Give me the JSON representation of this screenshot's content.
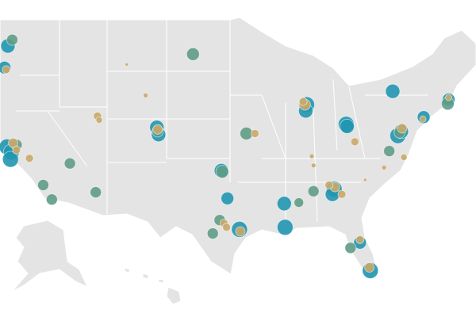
{
  "map": {
    "markers": [
      {
        "color": "#2196b0",
        "points": [
          [
            -122.3,
            47.6,
            9
          ],
          [
            -122.7,
            45.5,
            8
          ],
          [
            -122.4,
            37.8,
            10
          ],
          [
            -121.9,
            37.3,
            10
          ],
          [
            -122.0,
            36.6,
            10
          ],
          [
            -105.0,
            39.7,
            9
          ],
          [
            -104.8,
            39.0,
            9
          ],
          [
            -97.5,
            35.5,
            9
          ],
          [
            -96.8,
            32.8,
            8
          ],
          [
            -95.4,
            29.8,
            10
          ],
          [
            -90.2,
            32.3,
            9
          ],
          [
            -90.1,
            30.0,
            10
          ],
          [
            -84.4,
            33.7,
            10
          ],
          [
            -84.6,
            33.2,
            9
          ],
          [
            -87.6,
            41.9,
            10
          ],
          [
            -87.7,
            41.3,
            9
          ],
          [
            -83.0,
            40.0,
            10
          ],
          [
            -82.9,
            39.8,
            9
          ],
          [
            -77.0,
            38.9,
            10
          ],
          [
            -76.6,
            39.3,
            9
          ],
          [
            -74.0,
            40.7,
            8
          ],
          [
            -71.1,
            42.4,
            8
          ],
          [
            -77.6,
            43.2,
            9
          ],
          [
            -81.4,
            28.5,
            8
          ],
          [
            -80.2,
            25.8,
            10
          ]
        ]
      },
      {
        "color": "#5f9c86",
        "points": [
          [
            -121.8,
            48.2,
            7
          ],
          [
            -121.3,
            38.0,
            7
          ],
          [
            -118.2,
            34.1,
            7
          ],
          [
            -117.2,
            32.7,
            7
          ],
          [
            -115.1,
            36.2,
            7
          ],
          [
            -112.1,
            33.4,
            7
          ],
          [
            -104.9,
            39.3,
            7
          ],
          [
            -100.8,
            46.8,
            8
          ],
          [
            -94.6,
            39.1,
            8
          ],
          [
            -97.4,
            35.4,
            8
          ],
          [
            -98.5,
            29.4,
            7
          ],
          [
            -97.7,
            30.7,
            7
          ],
          [
            -88.5,
            32.4,
            6
          ],
          [
            -86.8,
            33.5,
            7
          ],
          [
            -78.0,
            37.4,
            7
          ],
          [
            -76.8,
            39.2,
            7
          ],
          [
            -71.2,
            42.0,
            8
          ],
          [
            -82.5,
            28.0,
            7
          ]
        ]
      },
      {
        "color": "#c9a96a",
        "points": [
          [
            -122.5,
            45.3,
            5
          ],
          [
            -121.7,
            38.2,
            6
          ],
          [
            -121.3,
            37.5,
            5
          ],
          [
            -119.8,
            36.7,
            5
          ],
          [
            -108.5,
            45.8,
            2
          ],
          [
            -106.3,
            42.8,
            3
          ],
          [
            -111.9,
            40.8,
            5
          ],
          [
            -111.7,
            40.4,
            4
          ],
          [
            -104.9,
            39.5,
            6
          ],
          [
            -93.6,
            39.1,
            5
          ],
          [
            -97.2,
            30.4,
            5
          ],
          [
            -96.9,
            30.0,
            5
          ],
          [
            -95.3,
            29.6,
            6
          ],
          [
            -87.8,
            41.9,
            7
          ],
          [
            -88.0,
            42.2,
            5
          ],
          [
            -84.3,
            33.9,
            6
          ],
          [
            -85.0,
            34.1,
            5
          ],
          [
            -83.5,
            33.2,
            5
          ],
          [
            -82.0,
            38.3,
            5
          ],
          [
            -87.0,
            36.9,
            3
          ],
          [
            -86.8,
            36.0,
            3
          ],
          [
            -80.8,
            34.6,
            2
          ],
          [
            -78.6,
            35.8,
            3
          ],
          [
            -76.3,
            36.8,
            4
          ],
          [
            -76.5,
            39.6,
            6
          ],
          [
            -74.1,
            40.5,
            4
          ],
          [
            -71.1,
            42.6,
            4
          ],
          [
            -81.4,
            28.8,
            5
          ],
          [
            -80.3,
            26.1,
            6
          ]
        ]
      }
    ]
  }
}
